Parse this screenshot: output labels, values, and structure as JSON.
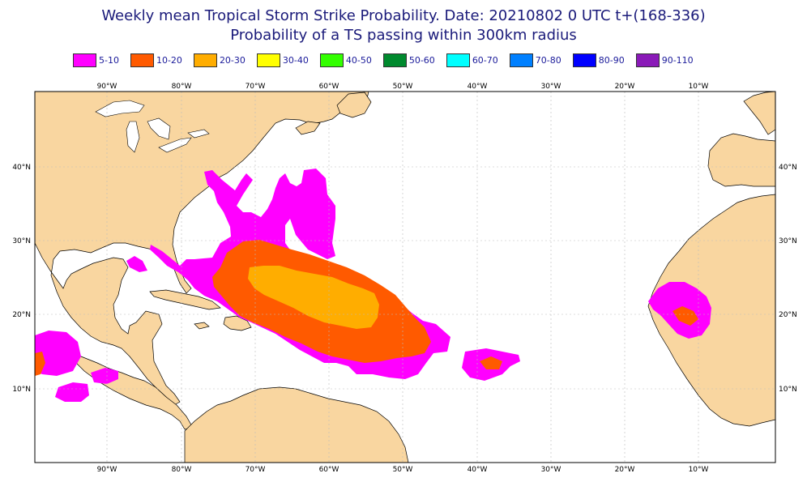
{
  "title": {
    "line1": "Weekly mean Tropical Storm Strike Probability. Date: 20210802  0 UTC    t+(168-336)",
    "line2": "Probability of a TS passing within  300km radius"
  },
  "legend": [
    {
      "label": "5-10",
      "color": "#ff00ff"
    },
    {
      "label": "10-20",
      "color": "#ff5a00"
    },
    {
      "label": "20-30",
      "color": "#ffad00"
    },
    {
      "label": "30-40",
      "color": "#ffff00"
    },
    {
      "label": "40-50",
      "color": "#33ff00"
    },
    {
      "label": "50-60",
      "color": "#008a2e"
    },
    {
      "label": "60-70",
      "color": "#00ffff"
    },
    {
      "label": "70-80",
      "color": "#0080ff"
    },
    {
      "label": "80-90",
      "color": "#0000ff"
    },
    {
      "label": "90-110",
      "color": "#8a1ab8"
    }
  ],
  "map": {
    "lon_labels": [
      "90°W",
      "80°W",
      "70°W",
      "60°W",
      "50°W",
      "40°W",
      "30°W",
      "20°W",
      "10°W"
    ],
    "lat_labels": [
      "40°N",
      "30°N",
      "20°N",
      "10°N"
    ],
    "land_color": "#f9d6a0",
    "sea_color": "#ffffff"
  }
}
